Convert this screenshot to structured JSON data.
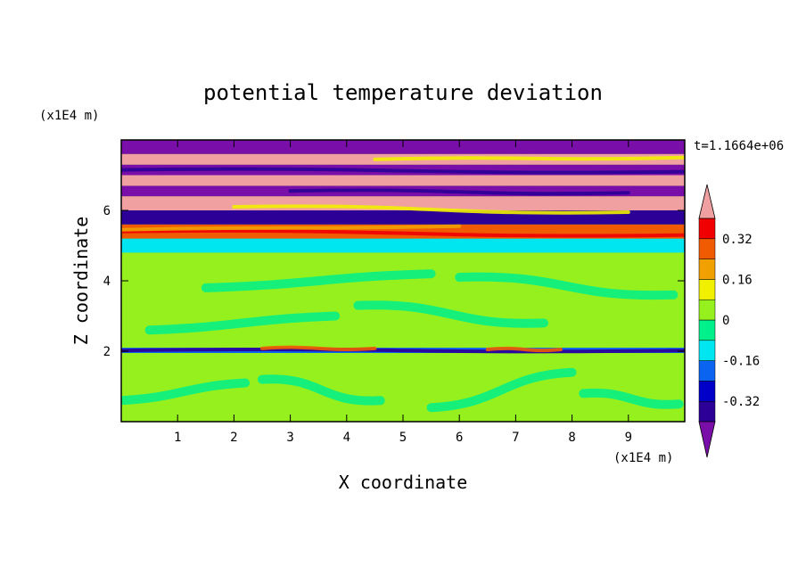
{
  "chart_data": {
    "type": "heatmap",
    "title": "potential temperature deviation",
    "xlabel": "X coordinate",
    "ylabel": "Z coordinate",
    "x_unit": "(x1E4 m)",
    "y_unit": "(x1E4 m)",
    "time_label": "t=1.1664e+06",
    "xlim": [
      0,
      10
    ],
    "ylim": [
      0,
      8
    ],
    "x_ticks": [
      1,
      2,
      3,
      4,
      5,
      6,
      7,
      8,
      9
    ],
    "y_ticks": [
      2,
      4,
      6
    ],
    "colorbar": {
      "levels": [
        -0.4,
        -0.32,
        -0.24,
        -0.16,
        -0.08,
        0,
        0.08,
        0.16,
        0.24,
        0.32,
        0.4
      ],
      "labeled_values": [
        "0.32",
        "0.16",
        "0",
        "-0.16",
        "-0.32"
      ],
      "label_level_values": [
        0.32,
        0.16,
        0,
        -0.16,
        -0.32
      ],
      "colors_low_to_high": [
        "#7a0ea8",
        "#2c0096",
        "#0000c8",
        "#0a64f0",
        "#00e6f0",
        "#00f08c",
        "#96f01e",
        "#f0f000",
        "#f0a000",
        "#f05a00",
        "#f00000",
        "#f0a0a0"
      ],
      "extend": "both"
    },
    "bands": [
      {
        "z_min": 0.0,
        "z_max": 1.95,
        "value": 0.02,
        "note": "mixed light green and teal patches"
      },
      {
        "z_min": 1.95,
        "z_max": 2.1,
        "value": -0.2,
        "note": "thin disturbed layer with blue and red streaks"
      },
      {
        "z_min": 2.1,
        "z_max": 4.8,
        "value": 0.03,
        "note": "mostly light green and teal"
      },
      {
        "z_min": 4.8,
        "z_max": 5.2,
        "value": -0.1,
        "note": "cyan and blue streaks"
      },
      {
        "z_min": 5.2,
        "z_max": 5.6,
        "value": 0.3,
        "note": "red and orange streaks"
      },
      {
        "z_min": 5.6,
        "z_max": 6.0,
        "value": -0.35,
        "note": "dark blue streaks"
      },
      {
        "z_min": 6.0,
        "z_max": 6.4,
        "value": 0.45,
        "note": "pink band"
      },
      {
        "z_min": 6.4,
        "z_max": 6.7,
        "value": -0.45,
        "note": "purple band"
      },
      {
        "z_min": 6.7,
        "z_max": 7.0,
        "value": 0.45,
        "note": "pink band"
      },
      {
        "z_min": 7.0,
        "z_max": 7.3,
        "value": -0.45,
        "note": "purple band"
      },
      {
        "z_min": 7.3,
        "z_max": 7.6,
        "value": 0.45,
        "note": "pink band"
      },
      {
        "z_min": 7.6,
        "z_max": 8.0,
        "value": -0.45,
        "note": "purple and pink top band"
      }
    ]
  }
}
